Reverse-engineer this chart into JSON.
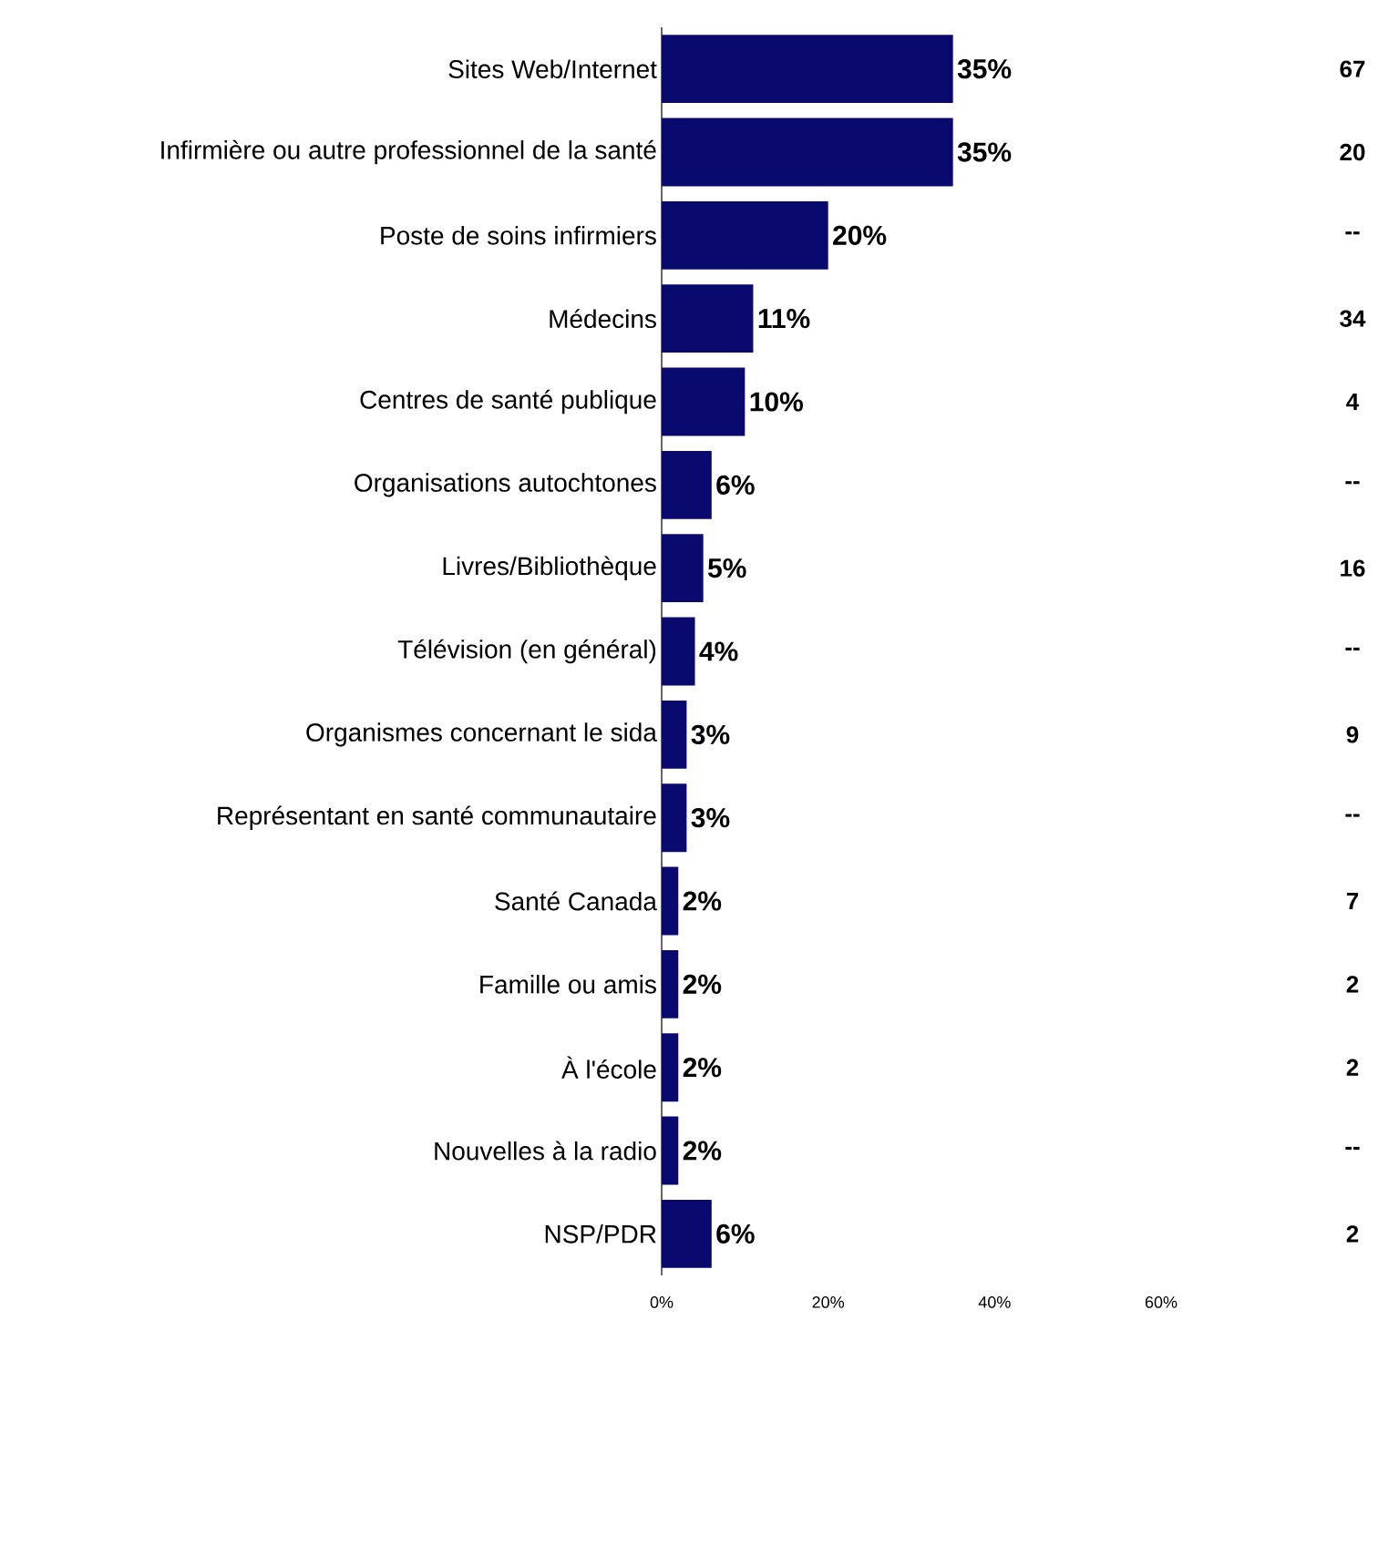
{
  "chart_data": {
    "type": "bar",
    "orientation": "horizontal",
    "categories": [
      "Sites Web/Internet",
      "Infirmière ou autre professionnel de la santé",
      "Poste de soins infirmiers",
      "Médecins",
      "Centres de santé publique",
      "Organisations autochtones",
      "Livres/Bibliothèque",
      "Télévision (en général)",
      "Organismes concernant le sida",
      "Représentant en santé communautaire",
      "Santé Canada",
      "Famille ou amis",
      "À l'école",
      "Nouvelles à la radio",
      "NSP/PDR"
    ],
    "values": [
      35,
      35,
      20,
      11,
      10,
      6,
      5,
      4,
      3,
      3,
      2,
      2,
      2,
      2,
      6
    ],
    "value_labels": [
      "35%",
      "35%",
      "20%",
      "11%",
      "10%",
      "6%",
      "5%",
      "4%",
      "3%",
      "3%",
      "2%",
      "2%",
      "2%",
      "2%",
      "6%"
    ],
    "color": "#0a0a6e",
    "xlim": [
      0,
      60
    ],
    "xticks": [
      {
        "value": 0,
        "label": "0%"
      },
      {
        "value": 20,
        "label": "20%"
      },
      {
        "value": 40,
        "label": "40%"
      },
      {
        "value": 60,
        "label": "60%"
      }
    ],
    "annotations": [
      "67",
      "20",
      "--",
      "34",
      "4",
      "--",
      "16",
      "--",
      "9",
      "--",
      "7",
      "2",
      "2",
      "--",
      "2"
    ]
  }
}
